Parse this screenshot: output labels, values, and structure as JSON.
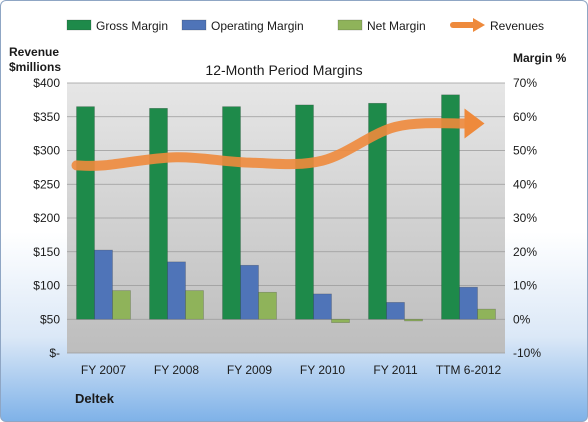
{
  "chart_data": {
    "type": "bar",
    "title": "12-Month Period Margins",
    "company": "Deltek",
    "categories": [
      "FY 2007",
      "FY 2008",
      "FY 2009",
      "FY 2010",
      "FY 2011",
      "TTM 6-2012"
    ],
    "left_axis": {
      "label_line1": "Revenue",
      "label_line2": "$millions",
      "range": [
        0,
        400
      ],
      "ticks": [
        {
          "value": 0,
          "label": "$-"
        },
        {
          "value": 50,
          "label": "$50"
        },
        {
          "value": 100,
          "label": "$100"
        },
        {
          "value": 150,
          "label": "$150"
        },
        {
          "value": 200,
          "label": "$200"
        },
        {
          "value": 250,
          "label": "$250"
        },
        {
          "value": 300,
          "label": "$300"
        },
        {
          "value": 350,
          "label": "$350"
        },
        {
          "value": 400,
          "label": "$400"
        }
      ]
    },
    "right_axis": {
      "label": "Margin %",
      "range": [
        -10,
        70
      ],
      "ticks": [
        {
          "value": -10,
          "label": "-10%"
        },
        {
          "value": 0,
          "label": "0%"
        },
        {
          "value": 10,
          "label": "10%"
        },
        {
          "value": 20,
          "label": "20%"
        },
        {
          "value": 30,
          "label": "30%"
        },
        {
          "value": 40,
          "label": "40%"
        },
        {
          "value": 50,
          "label": "50%"
        },
        {
          "value": 60,
          "label": "60%"
        },
        {
          "value": 70,
          "label": "70%"
        }
      ]
    },
    "series": [
      {
        "name": "Gross Margin",
        "axis": "right",
        "kind": "bar",
        "color": "#1e8a4a",
        "values": [
          63,
          62.5,
          63,
          63.5,
          64,
          66.5
        ]
      },
      {
        "name": "Operating Margin",
        "axis": "right",
        "kind": "bar",
        "color": "#4f74b8",
        "values": [
          20.5,
          17,
          16,
          7.5,
          5,
          9.5
        ]
      },
      {
        "name": "Net Margin",
        "axis": "right",
        "kind": "bar",
        "color": "#8fb35a",
        "values": [
          8.5,
          8.5,
          8,
          -1,
          -0.5,
          3
        ]
      },
      {
        "name": "Revenues",
        "axis": "left",
        "kind": "line",
        "color": "#ee8a3c",
        "values": [
          278,
          290,
          282,
          285,
          335,
          340
        ]
      }
    ],
    "grid": true,
    "legend_position": "top"
  }
}
